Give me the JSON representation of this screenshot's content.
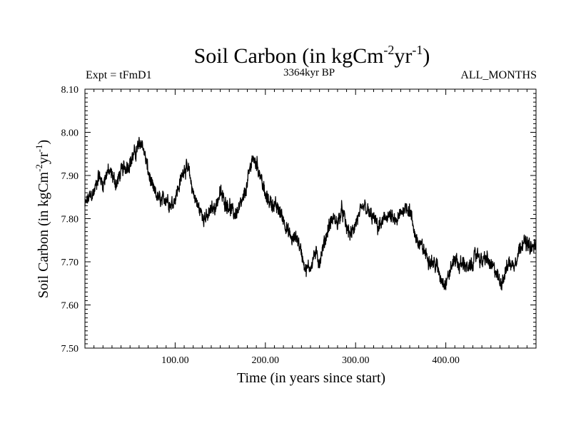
{
  "chart_data": {
    "type": "line",
    "title": {
      "main": "Soil Carbon (in kgCm",
      "sup1": "-2",
      "mid": "yr",
      "sup2": "-1",
      "end": ")"
    },
    "subtitle_left": "Expt = tFmD1",
    "subtitle_center": "3364kyr BP",
    "subtitle_right": "ALL_MONTHS",
    "xlabel": "Time (in years since start)",
    "ylabel": {
      "main": "Soil Carbon (in kgCm",
      "sup1": "-2",
      "mid": "yr",
      "sup2": "-1",
      "end": ")"
    },
    "xlim": [
      0,
      500
    ],
    "ylim": [
      7.5,
      8.1
    ],
    "x_ticks": [
      100,
      200,
      300,
      400
    ],
    "x_tick_labels": [
      "100.00",
      "200.00",
      "300.00",
      "400.00"
    ],
    "y_ticks": [
      7.5,
      7.6,
      7.7,
      7.8,
      7.9,
      8.0,
      8.1
    ],
    "y_tick_labels": [
      "7.50",
      "7.60",
      "7.70",
      "7.80",
      "7.90",
      "8.00",
      "8.10"
    ],
    "line_color": "#000000",
    "noise_amplitude": 0.018,
    "series": [
      {
        "name": "Soil Carbon",
        "x": [
          0,
          5,
          10,
          15,
          20,
          25,
          30,
          35,
          40,
          45,
          50,
          55,
          60,
          63,
          67,
          70,
          75,
          80,
          85,
          90,
          95,
          100,
          105,
          110,
          115,
          120,
          125,
          130,
          135,
          140,
          145,
          150,
          155,
          160,
          165,
          170,
          175,
          180,
          185,
          190,
          195,
          200,
          205,
          210,
          215,
          220,
          225,
          230,
          235,
          240,
          245,
          250,
          255,
          260,
          265,
          270,
          275,
          280,
          285,
          290,
          295,
          300,
          305,
          310,
          315,
          320,
          325,
          330,
          335,
          340,
          345,
          350,
          355,
          360,
          365,
          370,
          375,
          380,
          385,
          390,
          395,
          400,
          405,
          410,
          415,
          420,
          425,
          430,
          435,
          440,
          445,
          450,
          455,
          460,
          465,
          470,
          475,
          480,
          485,
          490,
          495,
          500
        ],
        "y": [
          7.83,
          7.85,
          7.86,
          7.9,
          7.88,
          7.91,
          7.9,
          7.88,
          7.91,
          7.92,
          7.93,
          7.95,
          7.97,
          7.98,
          7.94,
          7.91,
          7.87,
          7.85,
          7.84,
          7.85,
          7.83,
          7.85,
          7.88,
          7.92,
          7.91,
          7.86,
          7.83,
          7.81,
          7.8,
          7.82,
          7.83,
          7.86,
          7.84,
          7.83,
          7.81,
          7.82,
          7.84,
          7.88,
          7.94,
          7.93,
          7.9,
          7.85,
          7.84,
          7.83,
          7.82,
          7.8,
          7.77,
          7.75,
          7.76,
          7.72,
          7.68,
          7.69,
          7.72,
          7.7,
          7.74,
          7.78,
          7.8,
          7.79,
          7.82,
          7.78,
          7.76,
          7.79,
          7.81,
          7.83,
          7.81,
          7.8,
          7.78,
          7.79,
          7.81,
          7.8,
          7.79,
          7.81,
          7.83,
          7.82,
          7.77,
          7.74,
          7.73,
          7.71,
          7.7,
          7.69,
          7.66,
          7.65,
          7.68,
          7.71,
          7.69,
          7.7,
          7.68,
          7.7,
          7.72,
          7.7,
          7.71,
          7.69,
          7.68,
          7.65,
          7.67,
          7.7,
          7.69,
          7.72,
          7.75,
          7.74,
          7.73,
          7.74
        ]
      }
    ]
  }
}
